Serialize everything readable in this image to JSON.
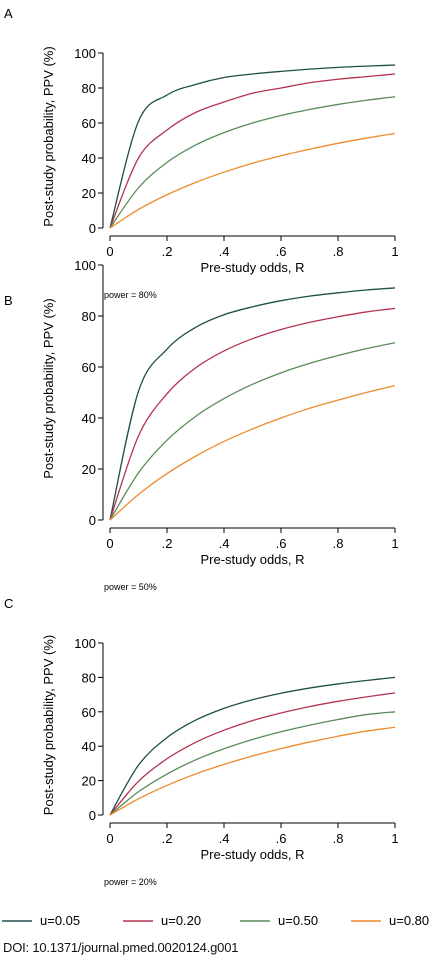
{
  "colors": {
    "u005": "#1f4e4a",
    "u020": "#b3334f",
    "u050": "#5a8a5a",
    "u080": "#ee8a2d"
  },
  "chart_data": [
    {
      "type": "line",
      "panel_label": "A",
      "xlabel": "Pre-study odds, R",
      "ylabel": "Post-study probability, PPV (%)",
      "note": "power = 80%",
      "power": 0.8,
      "xlim": [
        0,
        1
      ],
      "ylim": [
        0,
        100
      ],
      "xticks": [
        {
          "v": 0,
          "label": "0"
        },
        {
          "v": 0.2,
          "label": ".2"
        },
        {
          "v": 0.4,
          "label": ".4"
        },
        {
          "v": 0.6,
          "label": ".6"
        },
        {
          "v": 0.8,
          "label": ".8"
        },
        {
          "v": 1,
          "label": "1"
        }
      ],
      "yticks": [
        {
          "v": 0,
          "label": "0"
        },
        {
          "v": 20,
          "label": "20"
        },
        {
          "v": 40,
          "label": "40"
        },
        {
          "v": 60,
          "label": "60"
        },
        {
          "v": 80,
          "label": "80"
        },
        {
          "v": 100,
          "label": "100"
        }
      ],
      "x": [
        0,
        0.1,
        0.2,
        0.3,
        0.4,
        0.5,
        0.6,
        0.7,
        0.8,
        0.9,
        1.0
      ],
      "series": [
        {
          "name": "u=0.05",
          "color_key": "u005",
          "values": [
            0,
            61,
            76,
            82,
            86,
            88,
            89.5,
            90.8,
            91.8,
            92.5,
            93.1
          ]
        },
        {
          "name": "u=0.20",
          "color_key": "u020",
          "values": [
            0,
            40,
            56,
            66,
            72,
            77,
            80,
            83,
            85,
            86.5,
            88
          ]
        },
        {
          "name": "u=0.50",
          "color_key": "u050",
          "values": [
            0,
            23,
            37.5,
            47.4,
            54.5,
            60,
            64.3,
            67.7,
            70.6,
            73,
            75
          ]
        },
        {
          "name": "u=0.80",
          "color_key": "u080",
          "values": [
            0,
            10.6,
            19,
            26,
            31.9,
            37,
            41.3,
            45,
            48.4,
            51.4,
            54
          ]
        }
      ]
    },
    {
      "type": "line",
      "panel_label": "B",
      "xlabel": "Pre-study odds, R",
      "ylabel": "Post-study probability, PPV (%)",
      "note": "power = 50%",
      "power": 0.5,
      "xlim": [
        0,
        1
      ],
      "ylim": [
        0,
        100
      ],
      "xticks": [
        {
          "v": 0,
          "label": "0"
        },
        {
          "v": 0.2,
          "label": ".2"
        },
        {
          "v": 0.4,
          "label": ".4"
        },
        {
          "v": 0.6,
          "label": ".6"
        },
        {
          "v": 0.8,
          "label": ".8"
        },
        {
          "v": 1,
          "label": "1"
        }
      ],
      "yticks": [
        {
          "v": 0,
          "label": "0"
        },
        {
          "v": 20,
          "label": "20"
        },
        {
          "v": 40,
          "label": "40"
        },
        {
          "v": 60,
          "label": "60"
        },
        {
          "v": 80,
          "label": "80"
        },
        {
          "v": 100,
          "label": "100"
        }
      ],
      "x": [
        0,
        0.1,
        0.2,
        0.3,
        0.4,
        0.5,
        0.6,
        0.7,
        0.8,
        0.9,
        1.0
      ],
      "series": [
        {
          "name": "u=0.05",
          "color_key": "u005",
          "values": [
            0,
            50.5,
            67,
            75.5,
            80.5,
            83.6,
            86,
            87.8,
            89.1,
            90.2,
            91
          ]
        },
        {
          "name": "u=0.20",
          "color_key": "u020",
          "values": [
            0,
            33,
            49.5,
            59.6,
            66.3,
            71.1,
            74.7,
            77.5,
            79.7,
            81.6,
            83
          ]
        },
        {
          "name": "u=0.50",
          "color_key": "u050",
          "values": [
            0,
            18.5,
            31.3,
            40.6,
            47.6,
            53.2,
            57.7,
            61.4,
            64.5,
            67.2,
            69.5
          ]
        },
        {
          "name": "u=0.80",
          "color_key": "u080",
          "values": [
            0,
            10,
            18.2,
            25,
            30.8,
            35.7,
            40,
            43.8,
            47,
            50,
            52.7
          ]
        }
      ]
    },
    {
      "type": "line",
      "panel_label": "C",
      "xlabel": "Pre-study odds, R",
      "ylabel": "Post-study probability, PPV (%)",
      "note": "power = 20%",
      "power": 0.2,
      "xlim": [
        0,
        1
      ],
      "ylim": [
        0,
        100
      ],
      "xticks": [
        {
          "v": 0,
          "label": "0"
        },
        {
          "v": 0.2,
          "label": ".2"
        },
        {
          "v": 0.4,
          "label": ".4"
        },
        {
          "v": 0.6,
          "label": ".6"
        },
        {
          "v": 0.8,
          "label": ".8"
        },
        {
          "v": 1,
          "label": "1"
        }
      ],
      "yticks": [
        {
          "v": 0,
          "label": "0"
        },
        {
          "v": 20,
          "label": "20"
        },
        {
          "v": 40,
          "label": "40"
        },
        {
          "v": 60,
          "label": "60"
        },
        {
          "v": 80,
          "label": "80"
        },
        {
          "v": 100,
          "label": "100"
        }
      ],
      "x": [
        0,
        0.1,
        0.2,
        0.3,
        0.4,
        0.5,
        0.6,
        0.7,
        0.8,
        0.9,
        1.0
      ],
      "series": [
        {
          "name": "u=0.05",
          "color_key": "u005",
          "values": [
            0,
            29,
            45,
            55.1,
            62,
            67,
            70.8,
            73.8,
            76.2,
            78.2,
            80
          ]
        },
        {
          "name": "u=0.20",
          "color_key": "u020",
          "values": [
            0,
            19.6,
            32.7,
            42.2,
            49.3,
            54.9,
            59.3,
            63,
            66.1,
            68.7,
            71
          ]
        },
        {
          "name": "u=0.50",
          "color_key": "u050",
          "values": [
            0,
            13.5,
            23.8,
            32,
            38.5,
            43.9,
            48.4,
            52.2,
            55.5,
            58.4,
            60
          ]
        },
        {
          "name": "u=0.80",
          "color_key": "u080",
          "values": [
            0,
            9.4,
            17.2,
            23.8,
            29.4,
            34.3,
            38.6,
            42.4,
            45.8,
            48.8,
            51
          ]
        }
      ]
    }
  ],
  "legend": [
    {
      "label": "u=0.05",
      "color_key": "u005"
    },
    {
      "label": "u=0.20",
      "color_key": "u020"
    },
    {
      "label": "u=0.50",
      "color_key": "u050"
    },
    {
      "label": "u=0.80",
      "color_key": "u080"
    }
  ],
  "footer": {
    "doi": "DOI: 10.1371/journal.pmed.0020124.g001"
  }
}
